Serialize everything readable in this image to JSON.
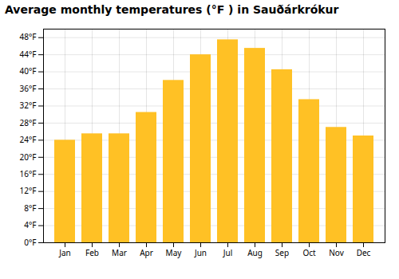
{
  "chart_data": {
    "type": "bar",
    "title": "Average monthly temperatures (°F ) in Sauðárkrókur",
    "categories": [
      "Jan",
      "Feb",
      "Mar",
      "Apr",
      "May",
      "Jun",
      "Jul",
      "Aug",
      "Sep",
      "Oct",
      "Nov",
      "Dec"
    ],
    "values": [
      24.0,
      25.5,
      25.5,
      30.5,
      38.0,
      44.0,
      47.5,
      45.5,
      40.5,
      33.5,
      27.0,
      25.0
    ],
    "color": "#FFC125",
    "ylim": [
      0,
      50
    ],
    "yticks": [
      {
        "value": 0,
        "label": "0°F"
      },
      {
        "value": 4,
        "label": "4°F"
      },
      {
        "value": 8,
        "label": "8°F"
      },
      {
        "value": 12,
        "label": "12°F"
      },
      {
        "value": 16,
        "label": "16°F"
      },
      {
        "value": 20,
        "label": "20°F"
      },
      {
        "value": 24,
        "label": "24°F"
      },
      {
        "value": 28,
        "label": "28°F"
      },
      {
        "value": 32,
        "label": "32°F"
      },
      {
        "value": 36,
        "label": "36°F"
      },
      {
        "value": 40,
        "label": "40°F"
      },
      {
        "value": 44,
        "label": "44°F"
      },
      {
        "value": 48,
        "label": "48°F"
      }
    ],
    "grid": true
  }
}
